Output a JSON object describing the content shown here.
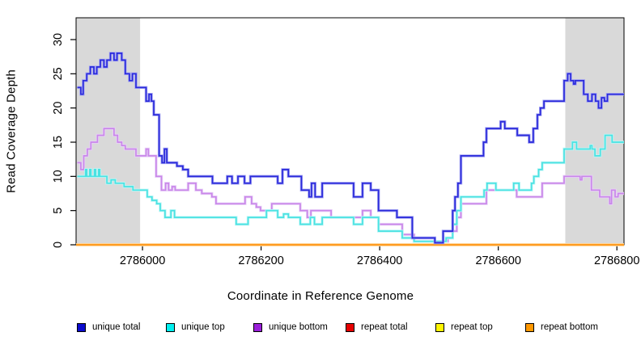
{
  "chart_data": {
    "type": "line",
    "subtype": "step",
    "title": "",
    "xlabel": "Coordinate in Reference Genome",
    "ylabel": "Read Coverage Depth",
    "xlim": [
      2785888,
      2786812
    ],
    "ylim": [
      0,
      30
    ],
    "x_ticks": [
      2786000,
      2786200,
      2786400,
      2786600,
      2786800
    ],
    "x_tick_labels": [
      "2786000",
      "2786200",
      "2786400",
      "2786600",
      "2786800"
    ],
    "y_ticks": [
      0,
      5,
      10,
      15,
      20,
      25,
      30
    ],
    "y_tick_labels": [
      "0",
      "5",
      "10",
      "15",
      "20",
      "25",
      "30"
    ],
    "grid": false,
    "legend_position": "bottom",
    "shaded_regions": [
      {
        "name": "left-repeat-region",
        "x0": 2785888,
        "x1": 2785996,
        "color": "#d9d9d9"
      },
      {
        "name": "right-repeat-region",
        "x0": 2786713,
        "x1": 2786812,
        "color": "#d9d9d9"
      }
    ],
    "series": [
      {
        "name": "repeat total",
        "line_color": "#e00000",
        "halo_color": "#ffb0b0",
        "swatch_color": "#e60000",
        "points": [
          [
            2785888,
            0
          ],
          [
            2786812,
            0
          ]
        ]
      },
      {
        "name": "repeat top",
        "line_color": "#ffee00",
        "halo_color": "#fff9b0",
        "swatch_color": "#fff500",
        "points": [
          [
            2785888,
            0
          ],
          [
            2786812,
            0
          ]
        ]
      },
      {
        "name": "unique bottom",
        "line_color": "#c987e9",
        "halo_color": "#e9d2f8",
        "swatch_color": "#9a1fd9",
        "points": [
          [
            2785890,
            12
          ],
          [
            2785896,
            11
          ],
          [
            2785901,
            13
          ],
          [
            2785907,
            14
          ],
          [
            2785913,
            15
          ],
          [
            2785924,
            16
          ],
          [
            2785935,
            17
          ],
          [
            2785952,
            16
          ],
          [
            2785958,
            15
          ],
          [
            2785965,
            14.5
          ],
          [
            2785971,
            14
          ],
          [
            2785989,
            13
          ],
          [
            2786006,
            14
          ],
          [
            2786010,
            13
          ],
          [
            2786023,
            10
          ],
          [
            2786032,
            8
          ],
          [
            2786039,
            9
          ],
          [
            2786044,
            8
          ],
          [
            2786050,
            8.5
          ],
          [
            2786055,
            8
          ],
          [
            2786077,
            9
          ],
          [
            2786090,
            8
          ],
          [
            2786100,
            7.5
          ],
          [
            2786117,
            7
          ],
          [
            2786124,
            6
          ],
          [
            2786173,
            7
          ],
          [
            2786184,
            6
          ],
          [
            2786192,
            5.5
          ],
          [
            2786199,
            5
          ],
          [
            2786218,
            6
          ],
          [
            2786266,
            5
          ],
          [
            2786278,
            4
          ],
          [
            2786284,
            5
          ],
          [
            2786318,
            4
          ],
          [
            2786371,
            5
          ],
          [
            2786385,
            4
          ],
          [
            2786398,
            3
          ],
          [
            2786438,
            1.5
          ],
          [
            2786458,
            0.5
          ],
          [
            2786515,
            1
          ],
          [
            2786523,
            2
          ],
          [
            2786530,
            4
          ],
          [
            2786537,
            6
          ],
          [
            2786580,
            8
          ],
          [
            2786631,
            7
          ],
          [
            2786674,
            9
          ],
          [
            2786711,
            10
          ],
          [
            2786738,
            9.5
          ],
          [
            2786741,
            10
          ],
          [
            2786757,
            8
          ],
          [
            2786771,
            7
          ],
          [
            2786788,
            6
          ],
          [
            2786791,
            8
          ],
          [
            2786797,
            7
          ],
          [
            2786802,
            7.5
          ],
          [
            2786810,
            7.5
          ]
        ]
      },
      {
        "name": "unique top",
        "line_color": "#4ae2e2",
        "halo_color": "#bdf6f6",
        "swatch_color": "#00f0f0",
        "points": [
          [
            2785890,
            10
          ],
          [
            2785904,
            11
          ],
          [
            2785906,
            10
          ],
          [
            2785911,
            11
          ],
          [
            2785913,
            10
          ],
          [
            2785919,
            11
          ],
          [
            2785921,
            10
          ],
          [
            2785926,
            11
          ],
          [
            2785928,
            10
          ],
          [
            2785940,
            9
          ],
          [
            2785947,
            9.5
          ],
          [
            2785954,
            9
          ],
          [
            2785969,
            8.5
          ],
          [
            2785984,
            8
          ],
          [
            2786008,
            7
          ],
          [
            2786016,
            6.5
          ],
          [
            2786024,
            6
          ],
          [
            2786030,
            5
          ],
          [
            2786038,
            4
          ],
          [
            2786048,
            5
          ],
          [
            2786054,
            4
          ],
          [
            2786148,
            4
          ],
          [
            2786158,
            3
          ],
          [
            2786178,
            4
          ],
          [
            2786209,
            5
          ],
          [
            2786228,
            4
          ],
          [
            2786238,
            4.5
          ],
          [
            2786246,
            4
          ],
          [
            2786266,
            3
          ],
          [
            2786283,
            4
          ],
          [
            2786290,
            3
          ],
          [
            2786303,
            4
          ],
          [
            2786356,
            3
          ],
          [
            2786371,
            4
          ],
          [
            2786398,
            2
          ],
          [
            2786438,
            1
          ],
          [
            2786458,
            0.5
          ],
          [
            2786512,
            1
          ],
          [
            2786523,
            3
          ],
          [
            2786530,
            5
          ],
          [
            2786537,
            7
          ],
          [
            2786576,
            8
          ],
          [
            2786581,
            9
          ],
          [
            2786596,
            8
          ],
          [
            2786626,
            9
          ],
          [
            2786635,
            8
          ],
          [
            2786656,
            9
          ],
          [
            2786660,
            10
          ],
          [
            2786668,
            11
          ],
          [
            2786674,
            12
          ],
          [
            2786711,
            14
          ],
          [
            2786725,
            15
          ],
          [
            2786732,
            14
          ],
          [
            2786755,
            14.5
          ],
          [
            2786758,
            14
          ],
          [
            2786763,
            13
          ],
          [
            2786772,
            14
          ],
          [
            2786780,
            16
          ],
          [
            2786792,
            15
          ],
          [
            2786810,
            15
          ]
        ]
      },
      {
        "name": "repeat bottom",
        "line_color": "#ff9412",
        "halo_color": "#ffd292",
        "swatch_color": "#ff9800",
        "points": [
          [
            2785888,
            0
          ],
          [
            2786812,
            0
          ]
        ]
      },
      {
        "name": "unique total",
        "line_color": "#2a2adb",
        "halo_color": "#a3a3f2",
        "swatch_color": "#0b0bcd",
        "points": [
          [
            2785890,
            23
          ],
          [
            2785896,
            22
          ],
          [
            2785900,
            24
          ],
          [
            2785906,
            25
          ],
          [
            2785912,
            26
          ],
          [
            2785918,
            25
          ],
          [
            2785923,
            26
          ],
          [
            2785929,
            27
          ],
          [
            2785935,
            26
          ],
          [
            2785940,
            27
          ],
          [
            2785946,
            28
          ],
          [
            2785952,
            27
          ],
          [
            2785957,
            28
          ],
          [
            2785965,
            27
          ],
          [
            2785971,
            25
          ],
          [
            2785978,
            24
          ],
          [
            2785983,
            25
          ],
          [
            2785989,
            23
          ],
          [
            2786000,
            23
          ],
          [
            2786006,
            21
          ],
          [
            2786011,
            22
          ],
          [
            2786015,
            21
          ],
          [
            2786019,
            19
          ],
          [
            2786028,
            13
          ],
          [
            2786033,
            12
          ],
          [
            2786037,
            14
          ],
          [
            2786041,
            12
          ],
          [
            2786058,
            11.5
          ],
          [
            2786068,
            11
          ],
          [
            2786077,
            10
          ],
          [
            2786118,
            9
          ],
          [
            2786143,
            10
          ],
          [
            2786151,
            9
          ],
          [
            2786161,
            10
          ],
          [
            2786172,
            9
          ],
          [
            2786182,
            10
          ],
          [
            2786211,
            10
          ],
          [
            2786228,
            9
          ],
          [
            2786236,
            11
          ],
          [
            2786246,
            10
          ],
          [
            2786268,
            8
          ],
          [
            2786281,
            7
          ],
          [
            2786285,
            9
          ],
          [
            2786291,
            7
          ],
          [
            2786303,
            9
          ],
          [
            2786356,
            7
          ],
          [
            2786371,
            9
          ],
          [
            2786385,
            8
          ],
          [
            2786398,
            5
          ],
          [
            2786429,
            4
          ],
          [
            2786455,
            1
          ],
          [
            2786493,
            0.3
          ],
          [
            2786507,
            2
          ],
          [
            2786523,
            5
          ],
          [
            2786527,
            7
          ],
          [
            2786532,
            9
          ],
          [
            2786537,
            13
          ],
          [
            2786575,
            15
          ],
          [
            2786580,
            17
          ],
          [
            2786604,
            18
          ],
          [
            2786611,
            17
          ],
          [
            2786632,
            16
          ],
          [
            2786652,
            15
          ],
          [
            2786659,
            17
          ],
          [
            2786666,
            19
          ],
          [
            2786671,
            20
          ],
          [
            2786677,
            21
          ],
          [
            2786711,
            24
          ],
          [
            2786717,
            25
          ],
          [
            2786722,
            24
          ],
          [
            2786727,
            23.5
          ],
          [
            2786730,
            24
          ],
          [
            2786744,
            22
          ],
          [
            2786751,
            21
          ],
          [
            2786758,
            22
          ],
          [
            2786764,
            21
          ],
          [
            2786769,
            20
          ],
          [
            2786774,
            21.5
          ],
          [
            2786779,
            21
          ],
          [
            2786784,
            22
          ],
          [
            2786810,
            22
          ]
        ]
      }
    ],
    "legend": [
      {
        "label": "unique total"
      },
      {
        "label": "unique top"
      },
      {
        "label": "unique bottom"
      },
      {
        "label": "repeat total"
      },
      {
        "label": "repeat top"
      },
      {
        "label": "repeat bottom"
      }
    ]
  }
}
